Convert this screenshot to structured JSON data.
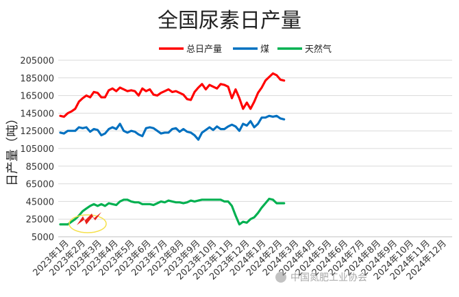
{
  "chart_data": {
    "type": "line",
    "title": "全国尿素日产量",
    "ylabel": "日产量（吨）",
    "xlabel": "",
    "ylim": [
      5000,
      205000
    ],
    "yticks": [
      205000,
      185000,
      165000,
      145000,
      125000,
      105000,
      85000,
      65000,
      45000,
      25000,
      5000
    ],
    "grid": "horizontal",
    "legend_position": "top-center",
    "x_tick_labels": [
      "2023年1月",
      "2023年2月",
      "2023年3月",
      "2023年4月",
      "2023年5月",
      "2023年6月",
      "2023年7月",
      "2023年8月",
      "2023年9月",
      "2023年10月",
      "2023年11月",
      "2023年12月",
      "2024年1月",
      "2024年2月",
      "2024年3月",
      "2024年4月",
      "2024年5月",
      "2024年6月",
      "2024年7月",
      "2024年8月",
      "2024年9月",
      "2024年10月",
      "2024年11月",
      "2024年12月"
    ],
    "series": [
      {
        "name": "总日产量",
        "color": "#ff0000",
        "values": [
          142000,
          141000,
          145000,
          147000,
          150000,
          158000,
          162000,
          165000,
          163000,
          169000,
          168000,
          163000,
          163000,
          171000,
          173000,
          170000,
          174000,
          172000,
          170000,
          171000,
          170000,
          165000,
          173000,
          170000,
          172000,
          166000,
          165000,
          168000,
          170000,
          172000,
          169000,
          170000,
          168000,
          166000,
          161000,
          160000,
          169000,
          174000,
          178000,
          172000,
          177000,
          175000,
          173000,
          178000,
          177000,
          175000,
          162000,
          172000,
          162000,
          150000,
          157000,
          150000,
          158000,
          168000,
          174000,
          182000,
          186000,
          190000,
          188000,
          183000,
          182000
        ]
      },
      {
        "name": "煤",
        "color": "#0070c0",
        "values": [
          123000,
          122000,
          125000,
          125000,
          125000,
          129000,
          128000,
          129000,
          124000,
          127000,
          126000,
          120000,
          122000,
          127000,
          129000,
          127000,
          133000,
          125000,
          123000,
          125000,
          124000,
          121000,
          119000,
          128000,
          129000,
          128000,
          125000,
          122000,
          123000,
          123000,
          127000,
          128000,
          124000,
          127000,
          124000,
          123000,
          120000,
          115000,
          123000,
          126000,
          129000,
          126000,
          130000,
          127000,
          127000,
          130000,
          132000,
          130000,
          125000,
          133000,
          131000,
          136000,
          129000,
          133000,
          140000,
          140000,
          142000,
          141000,
          142000,
          139000,
          138000
        ]
      },
      {
        "name": "天然气",
        "color": "#00b050",
        "values": [
          19000,
          19000,
          19000,
          22000,
          25000,
          29000,
          34000,
          37000,
          40000,
          42000,
          40000,
          42000,
          40000,
          43000,
          42000,
          41000,
          45000,
          47000,
          47000,
          45000,
          44000,
          44000,
          42000,
          42000,
          42000,
          41000,
          43000,
          45000,
          44000,
          46000,
          45000,
          44000,
          44000,
          43000,
          44000,
          46000,
          45000,
          46000,
          47000,
          47000,
          47000,
          47000,
          47000,
          47000,
          45000,
          45000,
          40000,
          29000,
          19000,
          22000,
          21000,
          25000,
          27000,
          32000,
          38000,
          43000,
          48000,
          47000,
          43000,
          43000,
          43000
        ]
      }
    ]
  },
  "watermark": "中国氮肥工业协会"
}
